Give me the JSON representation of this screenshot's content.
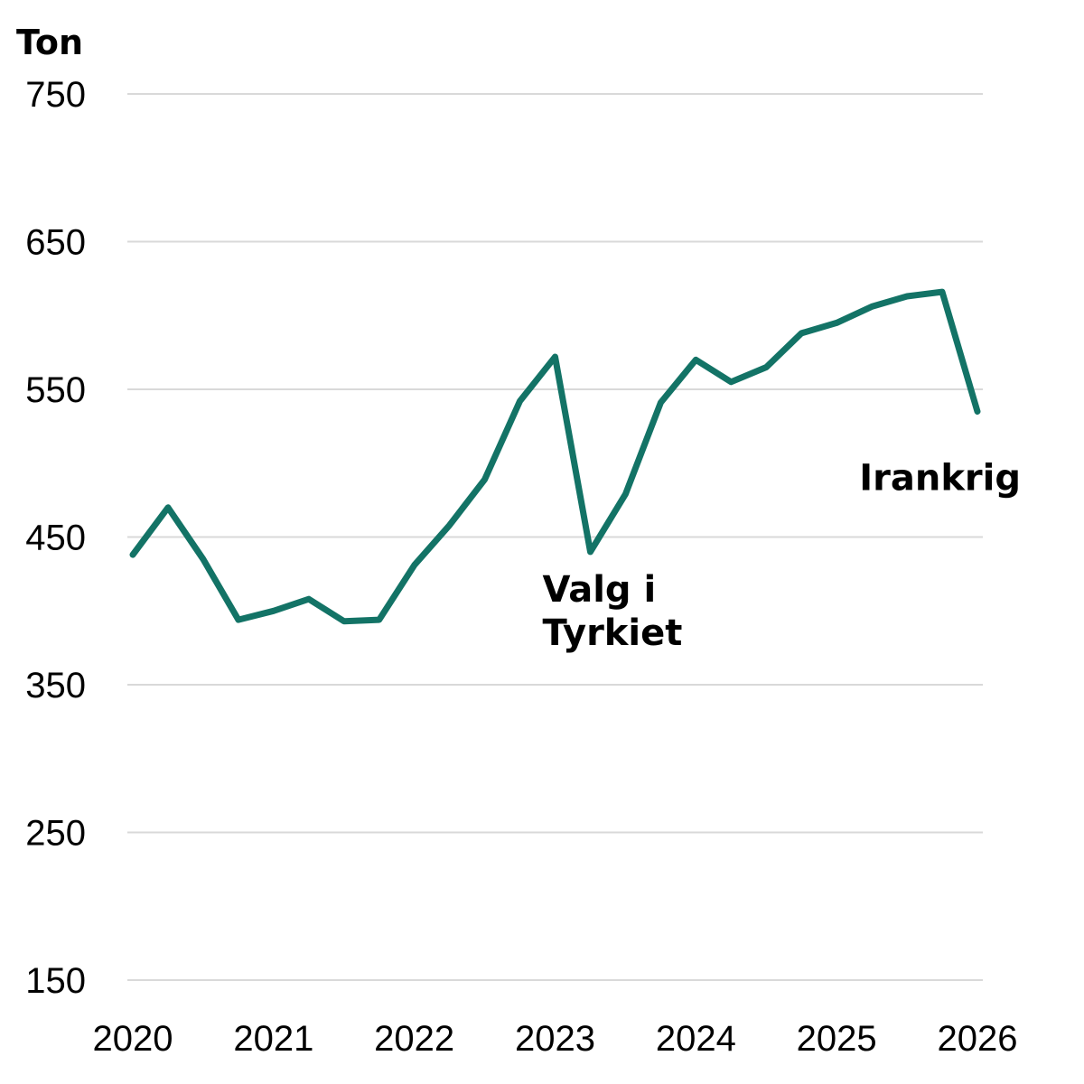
{
  "chart_data": {
    "type": "line",
    "title": "",
    "ylabel": "Ton",
    "xlabel": "",
    "ylim": [
      150,
      750
    ],
    "xlim": [
      2020,
      2026
    ],
    "yticks": [
      "750",
      "650",
      "550",
      "450",
      "350",
      "250",
      "150"
    ],
    "ytick_values": [
      750,
      650,
      550,
      450,
      350,
      250,
      150
    ],
    "xticks": [
      "2020",
      "2021",
      "2022",
      "2023",
      "2024",
      "2025",
      "2026"
    ],
    "xtick_values": [
      2020,
      2021,
      2022,
      2023,
      2024,
      2025,
      2026
    ],
    "grid": true,
    "line_color": "#137366",
    "series": [
      {
        "x": [
          2020.0,
          2020.25,
          2020.5,
          2020.75,
          2021.0,
          2021.25,
          2021.5,
          2021.75,
          2022.0,
          2022.25,
          2022.5,
          2022.75,
          2023.0,
          2023.25,
          2023.5,
          2023.75,
          2024.0,
          2024.25,
          2024.5,
          2024.75,
          2025.0,
          2025.25,
          2025.5,
          2025.75,
          2026.0
        ],
        "values": [
          438,
          470,
          435,
          394,
          400,
          408,
          393,
          394,
          431,
          458,
          489,
          542,
          572,
          440,
          479,
          541,
          570,
          555,
          565,
          588,
          595,
          606,
          613,
          616,
          535
        ]
      }
    ],
    "annotations": [
      {
        "lines": [
          "Valg i",
          "Tyrkiet"
        ],
        "x": 2023.25,
        "y": 440
      },
      {
        "lines": [
          "Irankrig"
        ],
        "x": 2026.0,
        "y": 535
      }
    ]
  }
}
